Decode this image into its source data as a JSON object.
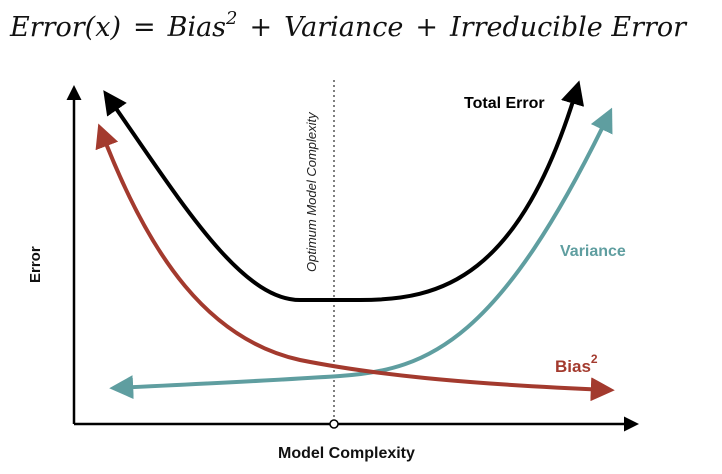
{
  "equation": {
    "lhs": "Error(x)",
    "equals": "=",
    "bias_term": "Bias",
    "bias_exponent": "2",
    "plus1": "+",
    "variance_term": "Variance",
    "plus2": "+",
    "irreducible_term": "Irreducible Error"
  },
  "diagram": {
    "x_axis_label": "Model Complexity",
    "y_axis_label": "Error",
    "optimum_label": "Optimum Model Complexity",
    "curves": {
      "total_error": {
        "label": "Total Error",
        "color": "#000000"
      },
      "variance": {
        "label": "Variance",
        "color": "#5f9ea0"
      },
      "bias": {
        "label": "Bias",
        "exponent": "2",
        "color": "#a33a2e"
      }
    }
  }
}
